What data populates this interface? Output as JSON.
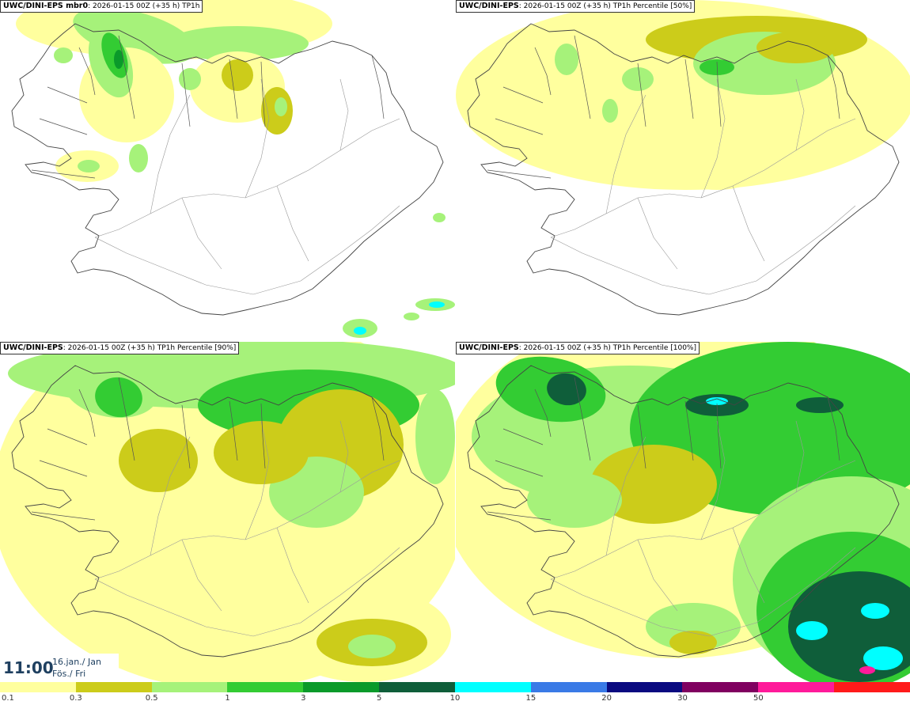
{
  "panels": [
    {
      "id": "mbr0",
      "title_bold": "UWC/DINI-EPS mbr0",
      "title_rest": ": 2026-01-15 00Z (+35 h) TP1h",
      "level": 0
    },
    {
      "id": "p50",
      "title_bold": "UWC/DINI-EPS",
      "title_rest": ": 2026-01-15 00Z (+35 h) TP1h Percentile [50%]",
      "level": 1
    },
    {
      "id": "p90",
      "title_bold": "UWC/DINI-EPS",
      "title_rest": ": 2026-01-15 00Z (+35 h) TP1h Percentile [90%]",
      "level": 2
    },
    {
      "id": "p100",
      "title_bold": "UWC/DINI-EPS",
      "title_rest": ": 2026-01-15 00Z (+35 h) TP1h Percentile [100%]",
      "level": 3
    }
  ],
  "timestamp": {
    "time": "11:00",
    "date_line1": "16.jan./ Jan",
    "date_line2": "Fös./ Fri"
  },
  "colorbar": {
    "labels": [
      "0.1",
      "0.3",
      "0.5",
      "1",
      "3",
      "5",
      "10",
      "15",
      "20",
      "30",
      "50"
    ],
    "colors": [
      "#ffff9e",
      "#cccc1a",
      "#a6f27a",
      "#33cc33",
      "#0a9a2a",
      "#0f5e3a",
      "#00ffff",
      "#3a7ae6",
      "#0a0a80",
      "#800060",
      "#ff1a9a",
      "#ff1a1a"
    ]
  },
  "precip_colors": {
    "pale_yellow": "#ffff9e",
    "olive": "#cccc1a",
    "light_green": "#a6f27a",
    "green": "#33cc33",
    "dark_green": "#0a9a2a",
    "darker_green": "#0f5e3a",
    "cyan": "#00ffff"
  }
}
